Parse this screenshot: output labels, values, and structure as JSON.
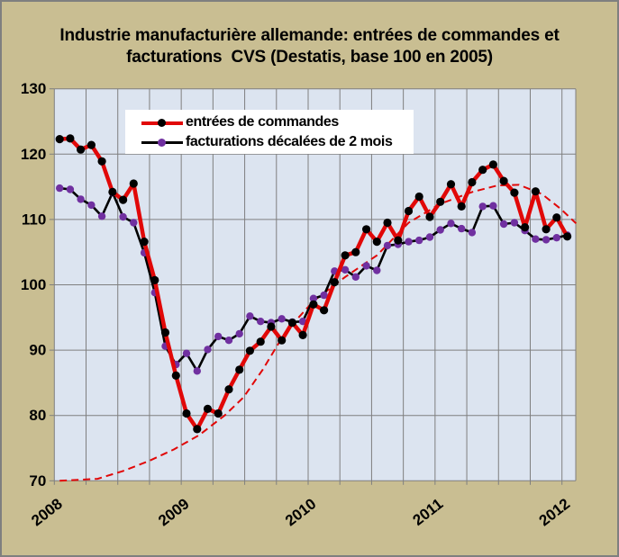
{
  "page": {
    "background": "#c9be92",
    "border_color": "#7f7f7f",
    "plot_background": "#dce4f0",
    "grid_color": "#7f7f7f"
  },
  "title": {
    "line1": "Industrie manufacturière allemande: entrées de commandes et",
    "line2": "facturations  CVS (Destatis, base 100 en 2005)"
  },
  "legend": {
    "entries": [
      {
        "label": "entrées de commandes",
        "line_color": "#e10808",
        "marker_color": "#000000"
      },
      {
        "label": "facturations décalées de 2 mois",
        "line_color": "#000000",
        "marker_color": "#7030a0"
      }
    ]
  },
  "chart_data": {
    "type": "line",
    "title": "Industrie manufacturière allemande: entrées de commandes et facturations CVS (Destatis, base 100 en 2005)",
    "x_unit": "month",
    "x_start": "2008-01",
    "x_end": "2012-01",
    "x_tick_labels": [
      "2008",
      "2009",
      "2010",
      "2011",
      "2012"
    ],
    "y_ticks": [
      70,
      80,
      90,
      100,
      110,
      120,
      130
    ],
    "ylim": [
      70,
      130
    ],
    "grid": "on",
    "legend_position": "top-left-inside",
    "series": [
      {
        "name": "entrées de commandes",
        "line_color": "#e10808",
        "marker_color": "#000000",
        "values": [
          122.3,
          122.4,
          120.7,
          121.4,
          118.9,
          114.2,
          113.0,
          115.5,
          106.6,
          100.7,
          92.7,
          86.1,
          80.3,
          77.9,
          81.0,
          80.3,
          84.0,
          87.0,
          89.9,
          91.3,
          93.6,
          91.5,
          94.2,
          92.3,
          97.0,
          96.1,
          100.4,
          104.5,
          105.0,
          108.5,
          106.6,
          109.5,
          106.8,
          111.3,
          113.5,
          110.4,
          112.7,
          115.4,
          112.0,
          115.7,
          117.6,
          118.4,
          115.9,
          114.1,
          108.8,
          114.3,
          108.5,
          110.3,
          107.4
        ]
      },
      {
        "name": "facturations décalées de 2 mois",
        "line_color": "#000000",
        "marker_color": "#7030a0",
        "values": [
          114.8,
          114.6,
          113.1,
          112.2,
          110.5,
          114.1,
          110.4,
          109.5,
          104.9,
          98.8,
          90.6,
          87.8,
          89.5,
          86.8,
          90.1,
          92.1,
          91.5,
          92.5,
          95.2,
          94.4,
          94.2,
          94.8,
          94.3,
          94.4,
          97.9,
          98.4,
          102.1,
          102.3,
          101.2,
          102.9,
          102.2,
          106.0,
          106.2,
          106.6,
          106.8,
          107.3,
          108.4,
          109.4,
          108.6,
          108.0,
          112.0,
          112.1,
          109.3,
          109.5,
          108.3,
          107.0,
          106.9,
          107.2,
          107.6
        ]
      }
    ],
    "trend": {
      "name": "courbe de tendance",
      "color": "#e10808",
      "style": "dashed",
      "points_year_value": [
        [
          0.0,
          70.0
        ],
        [
          0.3,
          70.3
        ],
        [
          0.5,
          71.5
        ],
        [
          0.7,
          73.0
        ],
        [
          0.9,
          74.8
        ],
        [
          1.1,
          77.0
        ],
        [
          1.3,
          80.0
        ],
        [
          1.45,
          82.8
        ],
        [
          1.6,
          87.0
        ],
        [
          1.78,
          92.8
        ],
        [
          2.0,
          97.5
        ],
        [
          2.25,
          101.2
        ],
        [
          2.5,
          104.5
        ],
        [
          2.75,
          109.5
        ],
        [
          3.0,
          112.4
        ],
        [
          3.25,
          114.2
        ],
        [
          3.45,
          115.2
        ],
        [
          3.62,
          115.3
        ],
        [
          3.8,
          113.9
        ],
        [
          3.95,
          111.6
        ],
        [
          4.07,
          109.4
        ]
      ]
    }
  }
}
